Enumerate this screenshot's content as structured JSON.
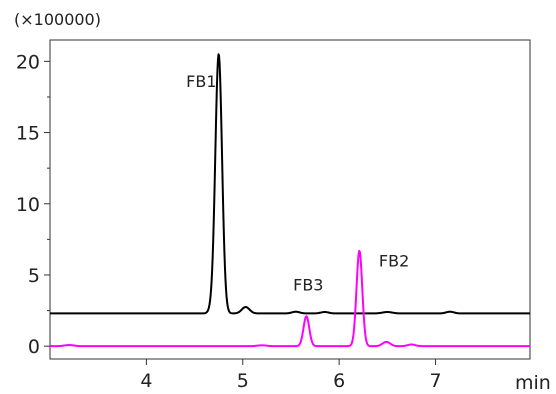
{
  "chart_data": {
    "type": "line",
    "title": "",
    "xlabel": "min",
    "ylabel": "",
    "y_multiplier": "(×100000)",
    "xlim": [
      3.0,
      7.98
    ],
    "ylim": [
      -0.9,
      21.5
    ],
    "x_ticks": [
      4,
      5,
      6,
      7
    ],
    "x_tick_labels": [
      "4",
      "5",
      "6",
      "7"
    ],
    "y_ticks": [
      0,
      5,
      10,
      15,
      20
    ],
    "y_tick_labels": [
      "0",
      "5",
      "10",
      "15",
      "20"
    ],
    "y_minor_ticks": [
      2.5,
      7.5,
      12.5,
      17.5
    ],
    "grid": false,
    "legend": "none",
    "series": [
      {
        "color": "#000000",
        "baseline": 2.3,
        "peaks": [
          {
            "x": 4.75,
            "height": 18.2,
            "width": 0.035
          },
          {
            "x": 4.68,
            "height": 0.25,
            "width": 0.03
          },
          {
            "x": 5.03,
            "height": 0.45,
            "width": 0.04
          },
          {
            "x": 5.55,
            "height": 0.12,
            "width": 0.04
          },
          {
            "x": 5.85,
            "height": 0.1,
            "width": 0.04
          },
          {
            "x": 6.5,
            "height": 0.1,
            "width": 0.05
          },
          {
            "x": 7.15,
            "height": 0.12,
            "width": 0.04
          }
        ]
      },
      {
        "color": "#ff00ff",
        "baseline": 0.0,
        "peaks": [
          {
            "x": 5.66,
            "height": 2.1,
            "width": 0.03
          },
          {
            "x": 6.21,
            "height": 6.7,
            "width": 0.03
          },
          {
            "x": 6.49,
            "height": 0.3,
            "width": 0.04
          },
          {
            "x": 6.75,
            "height": 0.12,
            "width": 0.04
          },
          {
            "x": 3.2,
            "height": 0.08,
            "width": 0.05
          },
          {
            "x": 5.2,
            "height": 0.06,
            "width": 0.05
          }
        ]
      }
    ],
    "annotations": [
      {
        "text": "FB1",
        "x": 4.57,
        "y": 18.2
      },
      {
        "text": "FB3",
        "x": 5.68,
        "y": 3.9
      },
      {
        "text": "FB2",
        "x": 6.57,
        "y": 5.6
      }
    ]
  }
}
